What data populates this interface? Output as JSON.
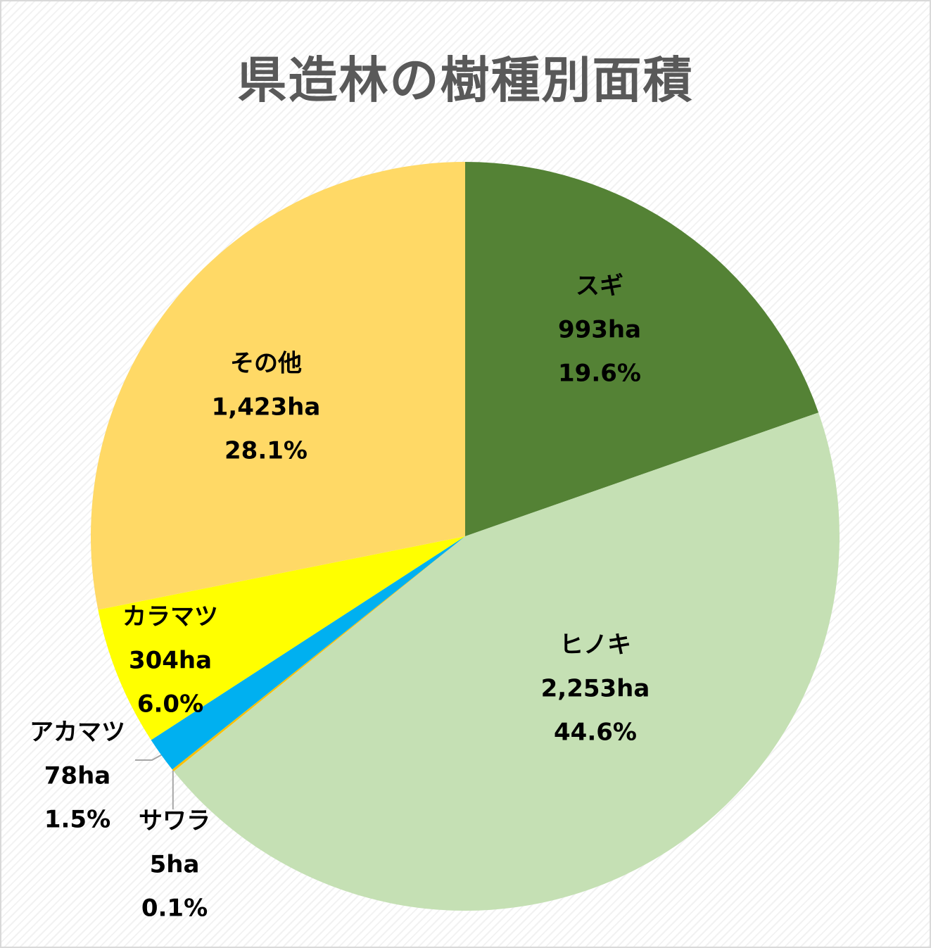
{
  "chart_data": {
    "type": "pie",
    "title": "県造林の樹種別面積",
    "start_angle_deg": 0,
    "direction": "clockwise",
    "slices": [
      {
        "name": "スギ",
        "value_label": "993ha",
        "percent_label": "19.6%",
        "value": 993,
        "percent": 19.6,
        "color": "#548235"
      },
      {
        "name": "ヒノキ",
        "value_label": "2,253ha",
        "percent_label": "44.6%",
        "value": 2253,
        "percent": 44.6,
        "color": "#C5E0B4"
      },
      {
        "name": "サワラ",
        "value_label": "5ha",
        "percent_label": "0.1%",
        "value": 5,
        "percent": 0.1,
        "color": "#FFC000"
      },
      {
        "name": "アカマツ",
        "value_label": "78ha",
        "percent_label": "1.5%",
        "value": 78,
        "percent": 1.5,
        "color": "#00B0F0"
      },
      {
        "name": "カラマツ",
        "value_label": "304ha",
        "percent_label": "6.0%",
        "value": 304,
        "percent": 6.0,
        "color": "#FFFF00"
      },
      {
        "name": "その他",
        "value_label": "1,423ha",
        "percent_label": "28.1%",
        "value": 1423,
        "percent": 28.1,
        "color": "#FFD966"
      }
    ]
  }
}
